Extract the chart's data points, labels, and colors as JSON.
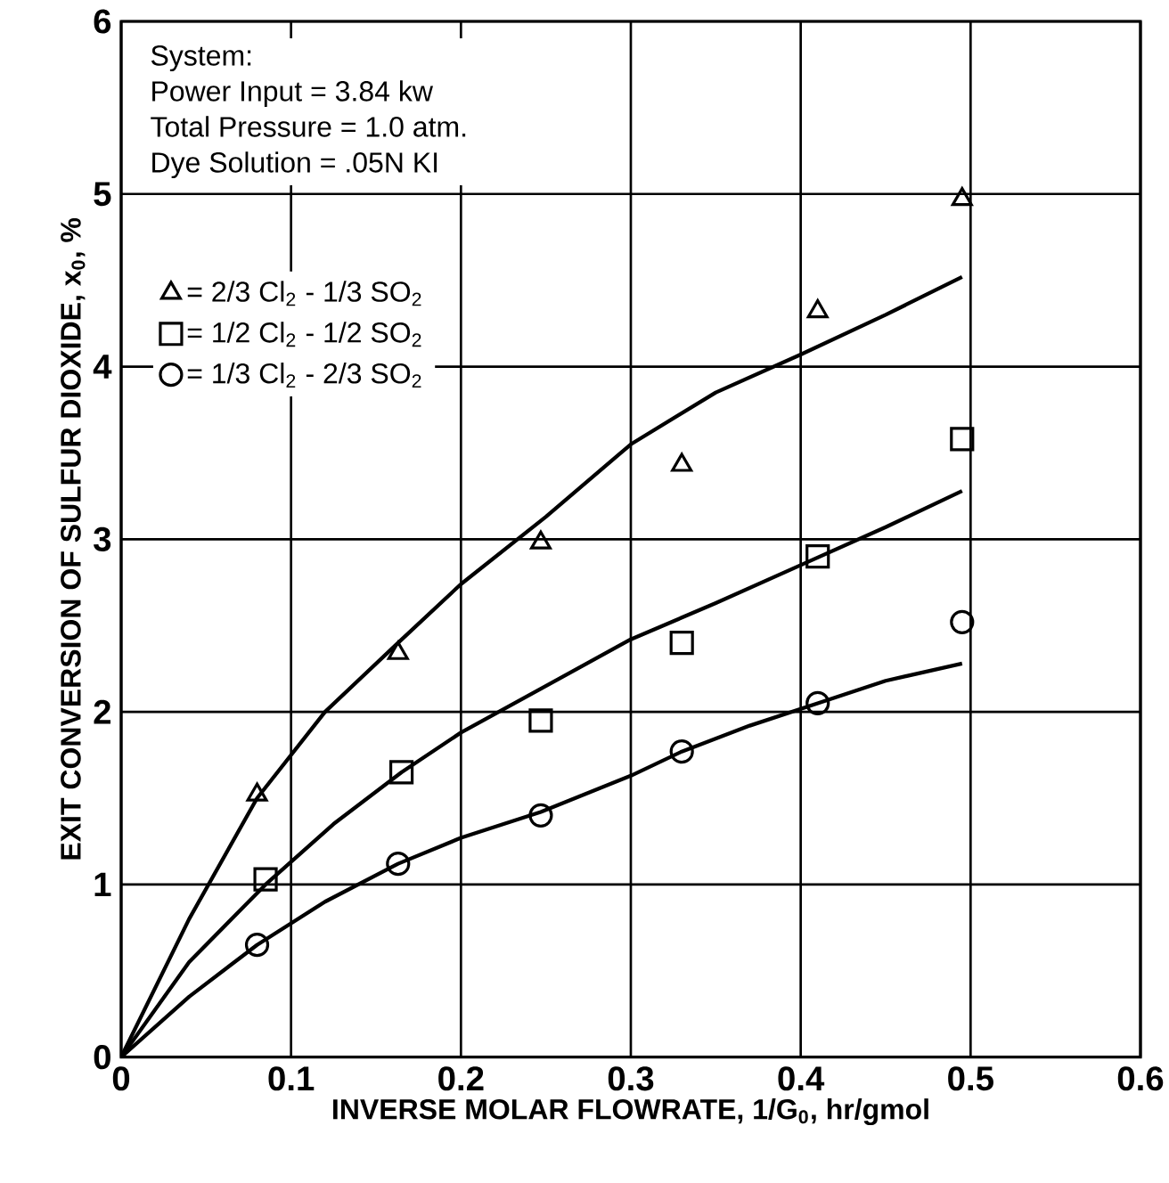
{
  "chart_data": {
    "type": "scatter",
    "xlabel": "INVERSE MOLAR FLOWRATE, 1/G$_{0}$, hr/gmol",
    "ylabel": "EXIT CONVERSION OF SULFUR DIOXIDE, x$_{0}$, %",
    "annotations": [
      "System:",
      "Power Input = 3.84 kw",
      "Total Pressure = 1.0 atm.",
      "Dye Solution = .05N KI"
    ],
    "xlim": [
      0,
      0.6
    ],
    "ylim": [
      0,
      6
    ],
    "xticks": [
      0,
      0.1,
      0.2,
      0.3,
      0.4,
      0.5,
      0.6
    ],
    "yticks": [
      0,
      1,
      2,
      3,
      4,
      5,
      6
    ],
    "grid": true,
    "legend": "top left",
    "series": [
      {
        "name": "= 2/3 Cl$_{2}$ - 1/3 SO$_{2}$",
        "marker": "triangle",
        "color": "#000000",
        "x": [
          0.08,
          0.163,
          0.247,
          0.33,
          0.41,
          0.495
        ],
        "values": [
          1.52,
          2.34,
          2.98,
          3.43,
          4.32,
          4.97
        ]
      },
      {
        "name": "= 1/2 Cl$_{2}$ - 1/2 SO$_{2}$",
        "marker": "square",
        "color": "#000000",
        "x": [
          0.085,
          0.165,
          0.247,
          0.33,
          0.41,
          0.495
        ],
        "values": [
          1.03,
          1.65,
          1.95,
          2.4,
          2.9,
          3.58
        ]
      },
      {
        "name": "= 1/3 Cl$_{2}$ - 2/3 SO$_{2}$",
        "marker": "circle",
        "color": "#000000",
        "x": [
          0.08,
          0.163,
          0.247,
          0.33,
          0.41,
          0.495
        ],
        "values": [
          0.65,
          1.12,
          1.4,
          1.77,
          2.05,
          2.52
        ]
      },
      {
        "type": "line",
        "marker": "none",
        "line_style": "solid",
        "color": "#000000",
        "x": [
          0,
          0.04,
          0.08,
          0.12,
          0.163,
          0.2,
          0.25,
          0.3,
          0.35,
          0.4,
          0.45,
          0.495
        ],
        "values": [
          0,
          0.8,
          1.5,
          2.0,
          2.4,
          2.74,
          3.13,
          3.55,
          3.85,
          4.07,
          4.3,
          4.52
        ]
      },
      {
        "type": "line",
        "marker": "none",
        "line_style": "solid",
        "color": "#000000",
        "x": [
          0,
          0.04,
          0.085,
          0.125,
          0.165,
          0.2,
          0.25,
          0.3,
          0.35,
          0.4,
          0.45,
          0.495
        ],
        "values": [
          0,
          0.55,
          1.0,
          1.35,
          1.65,
          1.88,
          2.15,
          2.42,
          2.63,
          2.85,
          3.07,
          3.28
        ]
      },
      {
        "type": "line",
        "marker": "none",
        "line_style": "solid",
        "color": "#000000",
        "x": [
          0,
          0.04,
          0.08,
          0.12,
          0.163,
          0.2,
          0.247,
          0.3,
          0.33,
          0.37,
          0.41,
          0.45,
          0.495
        ],
        "values": [
          0,
          0.35,
          0.65,
          0.9,
          1.12,
          1.27,
          1.42,
          1.63,
          1.77,
          1.92,
          2.05,
          2.18,
          2.28
        ]
      }
    ]
  }
}
